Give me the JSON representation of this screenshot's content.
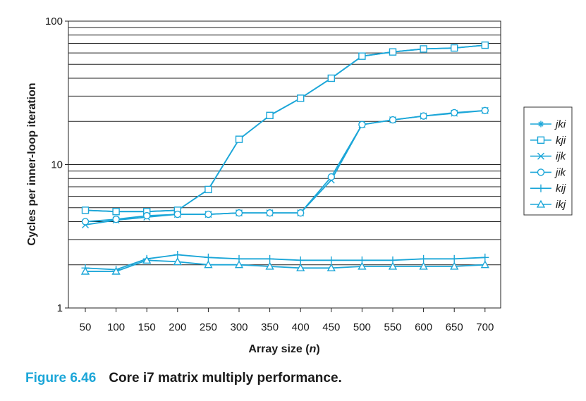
{
  "chart_data": {
    "type": "line",
    "y_scale": "log",
    "ylim": [
      1,
      100
    ],
    "xlabel": "Array size (n)",
    "xlabel_parts": [
      "Array size (",
      "n",
      ")"
    ],
    "ylabel": "Cycles per inner-loop iteration",
    "categories": [
      50,
      100,
      150,
      200,
      250,
      300,
      350,
      400,
      450,
      500,
      550,
      600,
      650,
      700
    ],
    "y_ticks": [
      "1",
      "10",
      "100"
    ],
    "grid": "horizontal",
    "legend_position": "right",
    "line_color": "#1ba6d8",
    "series": [
      {
        "name": "jki",
        "marker": "asterisk",
        "values": [
          4.8,
          4.7,
          4.7,
          4.8,
          6.7,
          15,
          22,
          29,
          40,
          57,
          61,
          64,
          65,
          68
        ]
      },
      {
        "name": "kji",
        "marker": "square",
        "values": [
          4.8,
          4.7,
          4.7,
          4.8,
          6.7,
          15,
          22,
          29,
          40,
          57,
          61,
          64,
          65,
          68
        ]
      },
      {
        "name": "ijk",
        "marker": "x",
        "values": [
          3.8,
          4.1,
          4.3,
          4.5,
          4.5,
          4.6,
          4.6,
          4.6,
          7.8,
          19,
          20.5,
          21.8,
          22.8,
          23.8
        ]
      },
      {
        "name": "jik",
        "marker": "circle",
        "values": [
          4.0,
          4.15,
          4.4,
          4.5,
          4.5,
          4.6,
          4.6,
          4.6,
          8.2,
          19,
          20.5,
          21.8,
          23.0,
          23.8
        ]
      },
      {
        "name": "kij",
        "marker": "plus",
        "values": [
          1.9,
          1.85,
          2.2,
          2.35,
          2.25,
          2.2,
          2.2,
          2.15,
          2.15,
          2.15,
          2.15,
          2.2,
          2.2,
          2.25
        ]
      },
      {
        "name": "ikj",
        "marker": "triangle",
        "values": [
          1.8,
          1.8,
          2.15,
          2.1,
          2.0,
          2.0,
          1.95,
          1.9,
          1.9,
          1.95,
          1.95,
          1.95,
          1.95,
          2.0
        ]
      }
    ]
  },
  "caption": {
    "number": "Figure 6.46",
    "text": "Core i7 matrix multiply performance."
  }
}
